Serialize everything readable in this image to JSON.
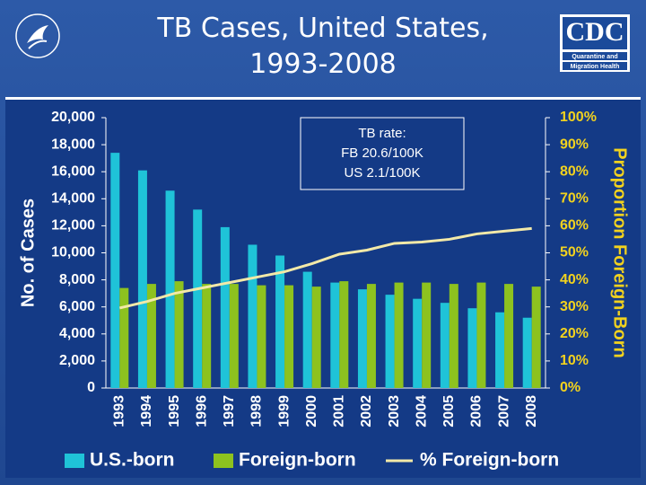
{
  "header": {
    "logo_text": "CDC",
    "logo_subtitle": [
      "Quarantine and",
      "Migration Health"
    ]
  },
  "chart_data": {
    "type": "bar",
    "title": "TB Cases, United States, 1993-2008",
    "y_label": "No. of Cases",
    "y2_label": "Proportion Foreign-Born",
    "categories": [
      "1993",
      "1994",
      "1995",
      "1996",
      "1997",
      "1998",
      "1999",
      "2000",
      "2001",
      "2002",
      "2003",
      "2004",
      "2005",
      "2006",
      "2007",
      "2008"
    ],
    "series": [
      {
        "name": "U.S.-born",
        "color": "#1fc3d8",
        "type": "bar",
        "values": [
          17400,
          16100,
          14600,
          13200,
          11900,
          10600,
          9800,
          8600,
          7800,
          7300,
          6900,
          6600,
          6300,
          5900,
          5600,
          5200
        ]
      },
      {
        "name": "Foreign-born",
        "color": "#8dc21f",
        "type": "bar",
        "values": [
          7400,
          7700,
          7900,
          7700,
          7700,
          7600,
          7600,
          7500,
          7900,
          7700,
          7800,
          7800,
          7700,
          7800,
          7700,
          7500
        ]
      },
      {
        "name": "% Foreign-born",
        "color": "#f3e9a8",
        "type": "line",
        "axis": "y2",
        "values": [
          29.6,
          32,
          35,
          37,
          39,
          41,
          43,
          46,
          49.5,
          51,
          53.5,
          54,
          55,
          57,
          58,
          59
        ]
      }
    ],
    "ylim": [
      0,
      20000
    ],
    "yticks": [
      0,
      {
        "value": 2000,
        "label": "2,000"
      },
      {
        "value": 4000,
        "label": "4,000"
      },
      {
        "value": 6000,
        "label": "6,000"
      },
      {
        "value": 8000,
        "label": "8,000"
      },
      {
        "value": 10000,
        "label": "10,000"
      },
      {
        "value": 12000,
        "label": "12,000"
      },
      {
        "value": 14000,
        "label": "14,000"
      },
      {
        "value": 16000,
        "label": "16,000"
      },
      {
        "value": 18000,
        "label": "18,000"
      },
      {
        "value": 20000,
        "label": "20,000"
      }
    ],
    "y2lim": [
      0,
      100
    ],
    "y2ticks": [
      {
        "value": 0,
        "label": "0%"
      },
      {
        "value": 10,
        "label": "10%"
      },
      {
        "value": 20,
        "label": "20%"
      },
      {
        "value": 30,
        "label": "30%"
      },
      {
        "value": 40,
        "label": "40%"
      },
      {
        "value": 50,
        "label": "50%"
      },
      {
        "value": 60,
        "label": "60%"
      },
      {
        "value": 70,
        "label": "70%"
      },
      {
        "value": 80,
        "label": "80%"
      },
      {
        "value": 90,
        "label": "90%"
      },
      {
        "value": 100,
        "label": "100%"
      }
    ],
    "annotations": [
      "TB rate:",
      "FB 20.6/100K",
      "US 2.1/100K"
    ],
    "grid": false
  }
}
